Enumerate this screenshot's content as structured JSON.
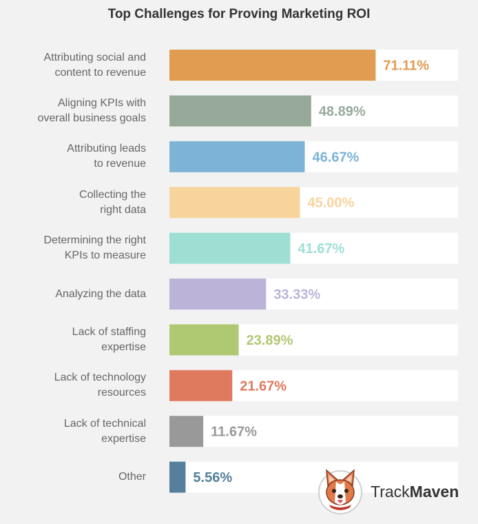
{
  "chart_data": {
    "type": "bar",
    "orientation": "horizontal",
    "title": "Top Challenges for Proving Marketing ROI",
    "categories": [
      [
        "Attributing social and",
        "content to revenue"
      ],
      [
        "Aligning KPIs with",
        "overall business goals"
      ],
      [
        "Attributing leads",
        "to revenue"
      ],
      [
        "Collecting the",
        "right data"
      ],
      [
        "Determining the right",
        "KPIs to measure"
      ],
      [
        "Analyzing the data"
      ],
      [
        "Lack of staffing",
        "expertise"
      ],
      [
        "Lack of technology",
        "resources"
      ],
      [
        "Lack of technical",
        "expertise"
      ],
      [
        "Other"
      ]
    ],
    "values": [
      71.11,
      48.89,
      46.67,
      45.0,
      41.67,
      33.33,
      23.89,
      21.67,
      11.67,
      5.56
    ],
    "value_labels": [
      "71.11%",
      "48.89%",
      "46.67%",
      "45.00%",
      "41.67%",
      "33.33%",
      "23.89%",
      "21.67%",
      "11.67%",
      "5.56%"
    ],
    "colors": [
      "#e09c50",
      "#97aa9a",
      "#7db3d6",
      "#f8d49d",
      "#9ddfd3",
      "#bcb3d8",
      "#afc872",
      "#e07a5f",
      "#999999",
      "#557f9c"
    ],
    "track_color": "#ffffff",
    "xlim": [
      0,
      100
    ],
    "grid": false
  },
  "branding": {
    "name_regular": "Track",
    "name_bold": "Maven",
    "logo_icon": "corgi-mascot-icon"
  }
}
